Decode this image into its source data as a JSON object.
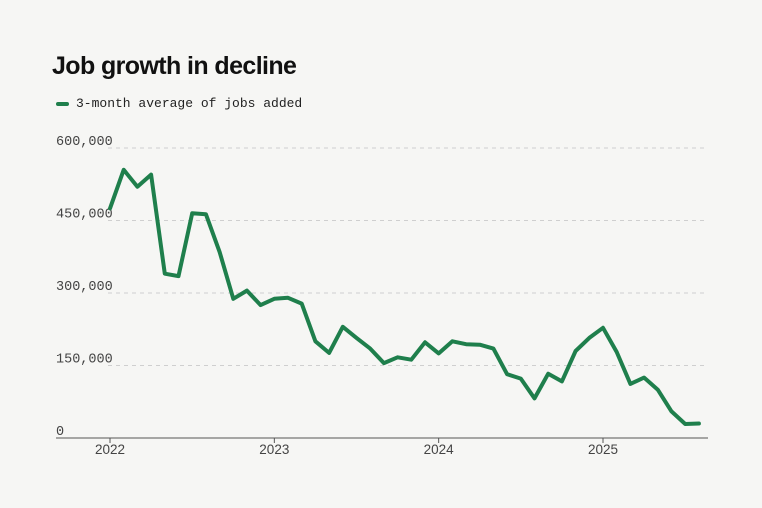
{
  "chart_data": {
    "type": "line",
    "title": "Job growth in decline",
    "xlabel": "",
    "ylabel": "",
    "ylim": [
      0,
      600000
    ],
    "yticks": [
      0,
      150000,
      300000,
      450000,
      600000
    ],
    "ytick_labels": [
      "0",
      "150,000",
      "300,000",
      "450,000",
      "600,000"
    ],
    "xticks": [
      "2022",
      "2023",
      "2024",
      "2025"
    ],
    "grid": true,
    "legend_position": "top-left",
    "series": [
      {
        "name": "3-month average of jobs added",
        "color": "#1f7f4c",
        "x": [
          "2022-01",
          "2022-02",
          "2022-03",
          "2022-04",
          "2022-05",
          "2022-06",
          "2022-07",
          "2022-08",
          "2022-09",
          "2022-10",
          "2022-11",
          "2022-12",
          "2023-01",
          "2023-02",
          "2023-03",
          "2023-04",
          "2023-05",
          "2023-06",
          "2023-07",
          "2023-08",
          "2023-09",
          "2023-10",
          "2023-11",
          "2023-12",
          "2024-01",
          "2024-02",
          "2024-03",
          "2024-04",
          "2024-05",
          "2024-06",
          "2024-07",
          "2024-08",
          "2024-09",
          "2024-10",
          "2024-11",
          "2024-12",
          "2025-01",
          "2025-02",
          "2025-03",
          "2025-04",
          "2025-05",
          "2025-06",
          "2025-07",
          "2025-08"
        ],
        "values": [
          475000,
          555000,
          520000,
          545000,
          340000,
          335000,
          465000,
          463000,
          385000,
          288000,
          305000,
          275000,
          288000,
          290000,
          278000,
          200000,
          176000,
          230000,
          207000,
          185000,
          155000,
          167000,
          162000,
          198000,
          175000,
          200000,
          194000,
          193000,
          185000,
          132000,
          123000,
          82000,
          133000,
          117000,
          180000,
          207000,
          228000,
          178000,
          112000,
          125000,
          100000,
          55000,
          29000,
          30000
        ]
      }
    ]
  }
}
